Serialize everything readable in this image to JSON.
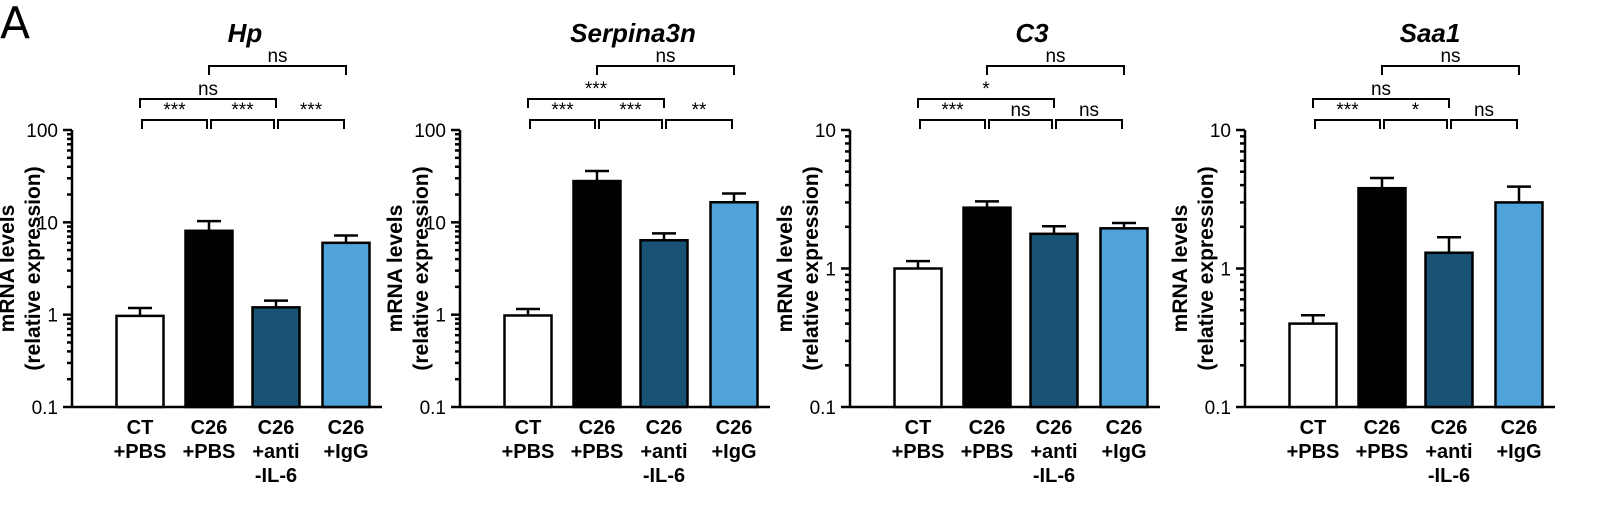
{
  "panel_label": "A",
  "colors": {
    "CT_PBS": "#ffffff",
    "C26_PBS": "#000000",
    "C26_anti": "#1a5276",
    "C26_IgG": "#4fa3d8",
    "outline": "#000000"
  },
  "chart_data": [
    {
      "type": "bar",
      "title": "Hp",
      "ylabel": [
        "mRNA levels",
        "(relative expression)"
      ],
      "yscale": "log",
      "ylim": [
        0.1,
        100
      ],
      "yticks": [
        "0.1",
        "1",
        "10",
        "100"
      ],
      "categories": [
        [
          "CT",
          "+PBS"
        ],
        [
          "C26",
          "+PBS"
        ],
        [
          "C26",
          "+anti",
          "-IL-6"
        ],
        [
          "C26",
          "+IgG"
        ]
      ],
      "values": [
        0.97,
        8.1,
        1.2,
        6.0
      ],
      "errors": [
        1.18,
        10.3,
        1.42,
        7.2
      ],
      "comparisons": [
        {
          "from": 0,
          "to": 1,
          "label": "***"
        },
        {
          "from": 1,
          "to": 2,
          "label": "***"
        },
        {
          "from": 2,
          "to": 3,
          "label": "***"
        },
        {
          "from": 0,
          "to": 2,
          "label": "ns"
        },
        {
          "from": 1,
          "to": 3,
          "label": "ns"
        }
      ]
    },
    {
      "type": "bar",
      "title": "Serpina3n",
      "ylabel": [
        "mRNA levels",
        "(relative expression)"
      ],
      "yscale": "log",
      "ylim": [
        0.1,
        100
      ],
      "yticks": [
        "0.1",
        "1",
        "10",
        "100"
      ],
      "categories": [
        [
          "CT",
          "+PBS"
        ],
        [
          "C26",
          "+PBS"
        ],
        [
          "C26",
          "+anti",
          "-IL-6"
        ],
        [
          "C26",
          "+IgG"
        ]
      ],
      "values": [
        0.98,
        28,
        6.4,
        16.5
      ],
      "errors": [
        1.15,
        36,
        7.6,
        20.5
      ],
      "comparisons": [
        {
          "from": 0,
          "to": 1,
          "label": "***"
        },
        {
          "from": 1,
          "to": 2,
          "label": "***"
        },
        {
          "from": 2,
          "to": 3,
          "label": "**"
        },
        {
          "from": 0,
          "to": 2,
          "label": "***"
        },
        {
          "from": 1,
          "to": 3,
          "label": "ns"
        }
      ]
    },
    {
      "type": "bar",
      "title": "C3",
      "ylabel": [
        "mRNA levels",
        "(relative expression)"
      ],
      "yscale": "log",
      "ylim": [
        0.1,
        10
      ],
      "yticks": [
        "0.1",
        "1",
        "10"
      ],
      "categories": [
        [
          "CT",
          "+PBS"
        ],
        [
          "C26",
          "+PBS"
        ],
        [
          "C26",
          "+anti",
          "-IL-6"
        ],
        [
          "C26",
          "+IgG"
        ]
      ],
      "values": [
        1.0,
        2.75,
        1.78,
        1.95
      ],
      "errors": [
        1.13,
        3.05,
        2.02,
        2.13
      ],
      "comparisons": [
        {
          "from": 0,
          "to": 1,
          "label": "***"
        },
        {
          "from": 1,
          "to": 2,
          "label": "ns"
        },
        {
          "from": 2,
          "to": 3,
          "label": "ns"
        },
        {
          "from": 0,
          "to": 2,
          "label": "*"
        },
        {
          "from": 1,
          "to": 3,
          "label": "ns"
        }
      ]
    },
    {
      "type": "bar",
      "title": "Saa1",
      "ylabel": [
        "mRNA levels",
        "(relative expression)"
      ],
      "yscale": "log",
      "ylim": [
        0.1,
        10
      ],
      "yticks": [
        "0.1",
        "1",
        "10"
      ],
      "categories": [
        [
          "CT",
          "+PBS"
        ],
        [
          "C26",
          "+PBS"
        ],
        [
          "C26",
          "+anti",
          "-IL-6"
        ],
        [
          "C26",
          "+IgG"
        ]
      ],
      "values": [
        0.4,
        3.8,
        1.3,
        3.0
      ],
      "errors": [
        0.46,
        4.5,
        1.68,
        3.9
      ],
      "comparisons": [
        {
          "from": 0,
          "to": 1,
          "label": "***"
        },
        {
          "from": 1,
          "to": 2,
          "label": "*"
        },
        {
          "from": 2,
          "to": 3,
          "label": "ns"
        },
        {
          "from": 0,
          "to": 2,
          "label": "ns"
        },
        {
          "from": 1,
          "to": 3,
          "label": "ns"
        }
      ]
    }
  ]
}
